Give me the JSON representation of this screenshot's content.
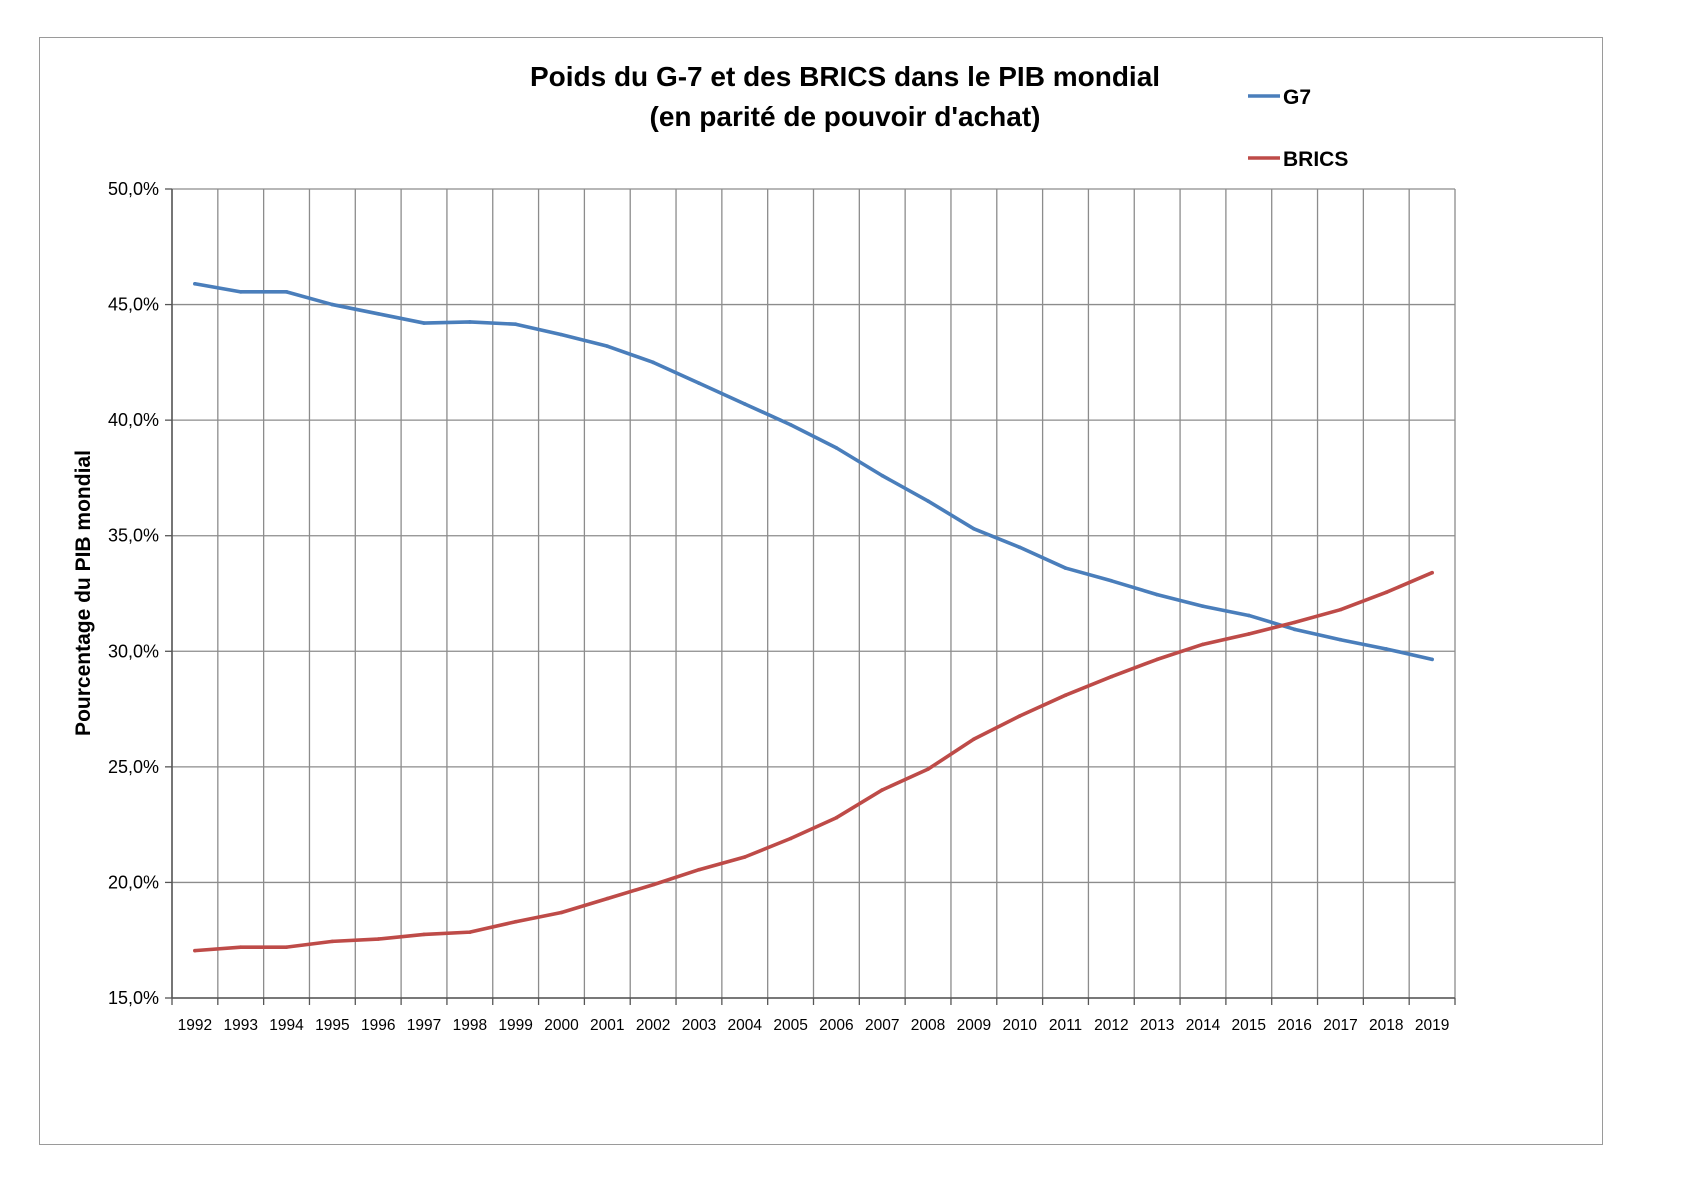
{
  "chart_data": {
    "type": "line",
    "title": [
      "Poids du G-7 et des BRICS dans le PIB mondial",
      "(en parité de pouvoir d'achat)"
    ],
    "ylabel": "Pourcentage du PIB mondial",
    "xlabel": "",
    "ylim": [
      15,
      50
    ],
    "yticks": [
      15,
      20,
      25,
      30,
      35,
      40,
      45,
      50
    ],
    "ytick_labels": [
      "15,0%",
      "20,0%",
      "25,0%",
      "30,0%",
      "35,0%",
      "40,0%",
      "45,0%",
      "50,0%"
    ],
    "categories": [
      "1992",
      "1993",
      "1994",
      "1995",
      "1996",
      "1997",
      "1998",
      "1999",
      "2000",
      "2001",
      "2002",
      "2003",
      "2004",
      "2005",
      "2006",
      "2007",
      "2008",
      "2009",
      "2010",
      "2011",
      "2012",
      "2013",
      "2014",
      "2015",
      "2016",
      "2017",
      "2018",
      "2019"
    ],
    "grid": true,
    "legend_position": "top-right",
    "series": [
      {
        "name": "G7",
        "color": "#4a7ebb",
        "values": [
          45.9,
          45.55,
          45.55,
          45.0,
          44.6,
          44.2,
          44.25,
          44.15,
          43.7,
          43.2,
          42.5,
          41.6,
          40.7,
          39.8,
          38.8,
          37.6,
          36.5,
          35.3,
          34.5,
          33.6,
          33.05,
          32.45,
          31.95,
          31.55,
          30.95,
          30.5,
          30.1,
          29.65
        ]
      },
      {
        "name": "BRICS",
        "color": "#be4b48",
        "values": [
          17.05,
          17.2,
          17.2,
          17.45,
          17.55,
          17.75,
          17.85,
          18.3,
          18.7,
          19.3,
          19.9,
          20.55,
          21.1,
          21.9,
          22.8,
          24.0,
          24.9,
          26.2,
          27.2,
          28.1,
          28.9,
          29.65,
          30.3,
          30.75,
          31.25,
          31.8,
          32.55,
          33.4
        ]
      }
    ]
  }
}
